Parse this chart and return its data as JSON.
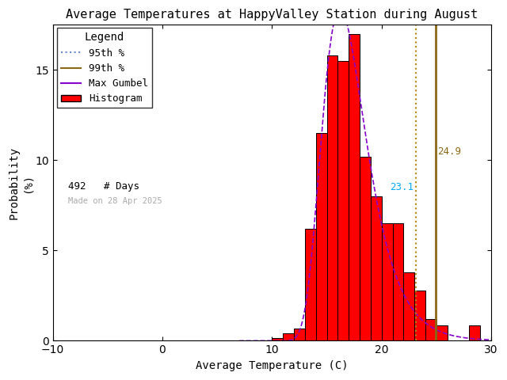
{
  "title": "Average Temperatures at HappyValley Station during August",
  "xlabel": "Average Temperature (C)",
  "ylabel": "Probability\n(%)",
  "xlim": [
    -10,
    30
  ],
  "ylim": [
    0,
    17.5
  ],
  "xticks": [
    -10,
    0,
    10,
    20,
    30
  ],
  "yticks": [
    0,
    5,
    10,
    15
  ],
  "hist_left_edges": [
    10,
    11,
    12,
    13,
    14,
    15,
    16,
    17,
    18,
    19,
    20,
    21,
    22,
    23,
    24,
    25,
    26,
    27,
    28
  ],
  "hist_values": [
    0.15,
    0.4,
    0.7,
    6.2,
    11.5,
    15.8,
    15.5,
    17.0,
    10.2,
    8.0,
    6.5,
    6.5,
    3.8,
    2.8,
    1.2,
    0.85,
    0.0,
    0.0,
    0.85
  ],
  "bar_color": "#ff0000",
  "bar_edge_color": "#000000",
  "percentile_95": 23.1,
  "percentile_99": 24.9,
  "percentile_95_color": "#b8860b",
  "percentile_95_label_color": "#00aaff",
  "percentile_99_color": "#8b6914",
  "gumbel_color": "#8800cc",
  "gumbel_mu": 16.2,
  "gumbel_beta": 2.0,
  "n_days": 492,
  "made_on": "Made on 28 Apr 2025",
  "legend_title": "Legend",
  "background_color": "#ffffff",
  "title_fontsize": 11,
  "axis_fontsize": 10,
  "tick_fontsize": 10,
  "legend_fontsize": 9,
  "p95_label": "23.1",
  "p99_label": "24.9"
}
